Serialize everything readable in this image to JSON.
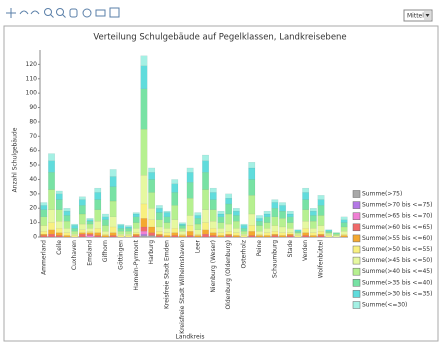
{
  "ui": {
    "dropdown": "Mittel"
  },
  "chart_data": {
    "type": "bar",
    "stacked": true,
    "title": "Verteilung Schulgebäude auf Pegelklassen, Landkreisebene",
    "x_label": "Landkreis",
    "y_label": "Anzahl Schulgebäude",
    "categories": [
      "Ammerland",
      null,
      "Celle",
      null,
      "Cuxhaven",
      null,
      "Emsland",
      null,
      "Gifhorn",
      null,
      "Göttingen",
      null,
      "Hameln-Pyrmont",
      null,
      "Harburg",
      null,
      "Kreisfreie Stadt Emden",
      null,
      "Kreisfreie Stadt Wilhelmshaven",
      null,
      "Leer",
      null,
      "Nienburg (Weser)",
      null,
      "Oldenburg (Oldenburg)",
      null,
      "Osterholz",
      null,
      "Peine",
      null,
      "Schaumburg",
      null,
      "Stade",
      null,
      "Verden",
      null,
      "Wolfenbüttel",
      null,
      null,
      null
    ],
    "ylim": [
      0,
      130
    ],
    "yticks": [
      0,
      10,
      20,
      30,
      40,
      50,
      60,
      70,
      80,
      90,
      100,
      110,
      120
    ],
    "grid": false,
    "legend": "right",
    "series": [
      {
        "name": "Summe(>75)",
        "color": "#a8a8a8",
        "values": [
          0,
          0,
          0,
          0,
          0,
          0,
          0,
          0,
          0,
          0,
          0,
          0,
          0,
          1,
          1,
          0,
          0,
          0,
          0,
          0,
          0,
          0,
          0,
          0,
          0,
          0,
          0,
          0,
          0,
          0,
          0,
          0,
          0,
          0,
          0,
          0,
          0,
          0,
          0,
          0
        ]
      },
      {
        "name": "Summe(>70 bis <=75)",
        "color": "#b478e6",
        "values": [
          0,
          0,
          0,
          0,
          0,
          0,
          0,
          0,
          0,
          0,
          0,
          0,
          0,
          1,
          0,
          0,
          0,
          0,
          0,
          0,
          0,
          0,
          0,
          0,
          0,
          0,
          0,
          0,
          0,
          0,
          0,
          0,
          0,
          0,
          0,
          0,
          0,
          0,
          0,
          0
        ]
      },
      {
        "name": "Summe(>65 bis <=70)",
        "color": "#f080d4",
        "values": [
          0,
          0,
          0,
          0,
          0,
          0,
          1,
          0,
          0,
          0,
          0,
          0,
          0,
          2,
          0,
          0,
          0,
          0,
          0,
          0,
          0,
          0,
          0,
          0,
          0,
          0,
          0,
          0,
          0,
          0,
          0,
          0,
          0,
          0,
          0,
          0,
          0,
          0,
          0,
          0
        ]
      },
      {
        "name": "Summe(>60 bis <=65)",
        "color": "#f06a6a",
        "values": [
          1,
          2,
          1,
          0,
          0,
          2,
          1,
          1,
          0,
          1,
          0,
          0,
          1,
          3,
          2,
          1,
          0,
          1,
          0,
          1,
          0,
          2,
          1,
          0,
          1,
          0,
          0,
          1,
          0,
          0,
          1,
          0,
          1,
          0,
          1,
          0,
          1,
          0,
          0,
          0
        ]
      },
      {
        "name": "Summe(>55 bis <=60)",
        "color": "#f4a830",
        "values": [
          1,
          3,
          2,
          1,
          0,
          1,
          1,
          2,
          1,
          2,
          0,
          0,
          1,
          6,
          4,
          1,
          1,
          2,
          1,
          3,
          1,
          3,
          2,
          1,
          1,
          1,
          0,
          3,
          1,
          1,
          1,
          1,
          1,
          0,
          2,
          1,
          1,
          0,
          0,
          1
        ]
      },
      {
        "name": "Summe(>50 bis <=55)",
        "color": "#f8f080",
        "values": [
          2,
          5,
          3,
          2,
          1,
          2,
          1,
          3,
          1,
          4,
          1,
          1,
          1,
          10,
          5,
          2,
          2,
          3,
          1,
          4,
          1,
          5,
          3,
          2,
          2,
          2,
          1,
          4,
          1,
          2,
          2,
          2,
          1,
          1,
          3,
          2,
          2,
          1,
          0,
          1
        ]
      },
      {
        "name": "Summe(>45 bis <=50)",
        "color": "#e6f8a0",
        "values": [
          4,
          9,
          5,
          3,
          1,
          4,
          2,
          5,
          2,
          7,
          1,
          1,
          3,
          20,
          8,
          3,
          3,
          6,
          2,
          7,
          3,
          9,
          5,
          3,
          5,
          3,
          1,
          8,
          2,
          3,
          4,
          4,
          3,
          1,
          5,
          3,
          4,
          1,
          1,
          2
        ]
      },
      {
        "name": "Summe(>40 bis <=45)",
        "color": "#b6f090",
        "values": [
          6,
          14,
          8,
          5,
          2,
          7,
          3,
          8,
          4,
          11,
          2,
          2,
          4,
          32,
          11,
          5,
          4,
          10,
          2,
          12,
          4,
          14,
          8,
          4,
          7,
          5,
          2,
          13,
          4,
          4,
          6,
          6,
          4,
          1,
          8,
          5,
          7,
          1,
          1,
          3
        ]
      },
      {
        "name": "Summe(>35 bis <=40)",
        "color": "#78e2a4",
        "values": [
          5,
          12,
          7,
          4,
          2,
          6,
          2,
          7,
          4,
          10,
          2,
          2,
          4,
          28,
          9,
          5,
          4,
          9,
          2,
          11,
          4,
          12,
          7,
          4,
          7,
          4,
          2,
          11,
          3,
          4,
          6,
          5,
          4,
          1,
          7,
          4,
          7,
          1,
          1,
          3
        ]
      },
      {
        "name": "Summe(>30 bis <=35)",
        "color": "#60dcdc",
        "values": [
          3,
          8,
          4,
          3,
          2,
          4,
          1,
          5,
          2,
          7,
          2,
          1,
          2,
          16,
          5,
          3,
          3,
          6,
          1,
          7,
          2,
          8,
          5,
          2,
          4,
          3,
          2,
          8,
          2,
          2,
          4,
          4,
          2,
          1,
          5,
          3,
          4,
          1,
          0,
          2
        ]
      },
      {
        "name": "Summe(<=30)",
        "color": "#a4f0e4",
        "values": [
          2,
          5,
          2,
          2,
          1,
          2,
          1,
          3,
          2,
          5,
          1,
          1,
          1,
          7,
          3,
          2,
          1,
          3,
          1,
          3,
          2,
          4,
          3,
          2,
          3,
          2,
          1,
          4,
          2,
          2,
          2,
          2,
          2,
          0,
          3,
          2,
          3,
          0,
          0,
          2
        ]
      }
    ]
  }
}
